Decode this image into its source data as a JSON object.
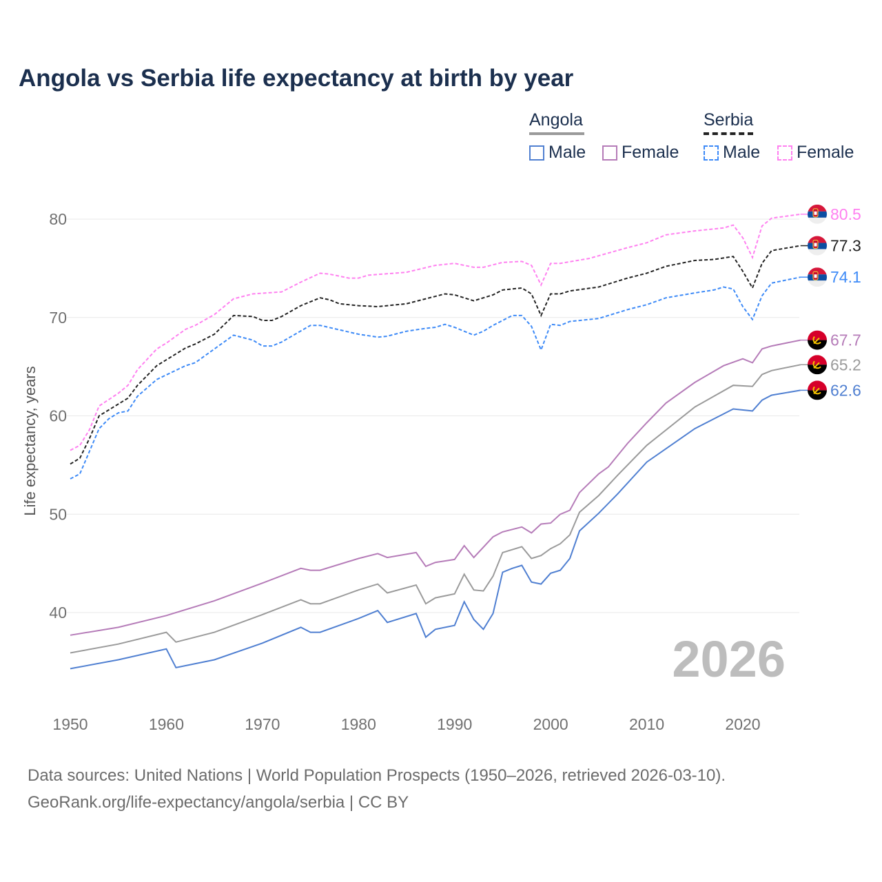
{
  "title": "Angola vs Serbia life expectancy at birth by year",
  "legend": {
    "angola": {
      "label": "Angola",
      "male": "Male",
      "female": "Female"
    },
    "serbia": {
      "label": "Serbia",
      "male": "Male",
      "female": "Female"
    }
  },
  "year_watermark": "2026",
  "footer": {
    "line1": "Data sources: United Nations | World Population Prospects (1950–2026, retrieved 2026-03-10).",
    "line2": "GeoRank.org/life-expectancy/angola/serbia | CC BY"
  },
  "chart_data": {
    "type": "line",
    "title": "Angola vs Serbia life expectancy at birth by year",
    "xlabel": "",
    "ylabel": "Life expectancy, years",
    "xlim": [
      1950,
      2026
    ],
    "ylim": [
      32,
      86
    ],
    "xticks": [
      "1950",
      "1960",
      "1970",
      "1980",
      "1990",
      "2000",
      "2010",
      "2020"
    ],
    "yticks": [
      "40",
      "50",
      "60",
      "70",
      "80"
    ],
    "grid": true,
    "legend_position": "top-right",
    "series": [
      {
        "name": "Serbia Female",
        "country": "Serbia",
        "color": "#ff80f0",
        "dashed": true,
        "end_label": "80.5",
        "points": [
          [
            1950,
            56.5
          ],
          [
            1951,
            57.0
          ],
          [
            1952,
            58.6
          ],
          [
            1953,
            61.0
          ],
          [
            1955,
            62.3
          ],
          [
            1956,
            63.1
          ],
          [
            1957,
            64.7
          ],
          [
            1959,
            66.8
          ],
          [
            1960,
            67.4
          ],
          [
            1962,
            68.8
          ],
          [
            1963,
            69.2
          ],
          [
            1965,
            70.3
          ],
          [
            1967,
            71.9
          ],
          [
            1969,
            72.4
          ],
          [
            1972,
            72.6
          ],
          [
            1974,
            73.6
          ],
          [
            1976,
            74.5
          ],
          [
            1977,
            74.4
          ],
          [
            1979,
            74.0
          ],
          [
            1980,
            74.0
          ],
          [
            1981,
            74.3
          ],
          [
            1985,
            74.6
          ],
          [
            1988,
            75.3
          ],
          [
            1990,
            75.5
          ],
          [
            1992,
            75.1
          ],
          [
            1993,
            75.1
          ],
          [
            1995,
            75.6
          ],
          [
            1997,
            75.7
          ],
          [
            1998,
            75.3
          ],
          [
            1999,
            73.3
          ],
          [
            2000,
            75.5
          ],
          [
            2001,
            75.5
          ],
          [
            2004,
            76.0
          ],
          [
            2008,
            77.1
          ],
          [
            2010,
            77.6
          ],
          [
            2012,
            78.4
          ],
          [
            2015,
            78.8
          ],
          [
            2018,
            79.1
          ],
          [
            2019,
            79.4
          ],
          [
            2020,
            78.1
          ],
          [
            2021,
            76.1
          ],
          [
            2022,
            79.3
          ],
          [
            2023,
            80.1
          ],
          [
            2026,
            80.5
          ]
        ]
      },
      {
        "name": "Serbia",
        "country": "Serbia",
        "color": "#222222",
        "dashed": true,
        "end_label": "77.3",
        "points": [
          [
            1950,
            55.1
          ],
          [
            1951,
            55.7
          ],
          [
            1952,
            57.7
          ],
          [
            1953,
            60.0
          ],
          [
            1955,
            61.2
          ],
          [
            1956,
            61.8
          ],
          [
            1957,
            63.1
          ],
          [
            1959,
            65.1
          ],
          [
            1962,
            66.9
          ],
          [
            1963,
            67.3
          ],
          [
            1965,
            68.3
          ],
          [
            1967,
            70.2
          ],
          [
            1969,
            70.1
          ],
          [
            1970,
            69.7
          ],
          [
            1971,
            69.7
          ],
          [
            1972,
            70.1
          ],
          [
            1974,
            71.2
          ],
          [
            1976,
            72.0
          ],
          [
            1977,
            71.8
          ],
          [
            1978,
            71.4
          ],
          [
            1980,
            71.2
          ],
          [
            1982,
            71.1
          ],
          [
            1985,
            71.4
          ],
          [
            1987,
            71.9
          ],
          [
            1989,
            72.4
          ],
          [
            1990,
            72.3
          ],
          [
            1992,
            71.7
          ],
          [
            1994,
            72.3
          ],
          [
            1995,
            72.8
          ],
          [
            1997,
            73.0
          ],
          [
            1998,
            72.4
          ],
          [
            1999,
            70.2
          ],
          [
            2000,
            72.4
          ],
          [
            2001,
            72.4
          ],
          [
            2002,
            72.7
          ],
          [
            2005,
            73.1
          ],
          [
            2008,
            74.0
          ],
          [
            2010,
            74.5
          ],
          [
            2012,
            75.2
          ],
          [
            2015,
            75.8
          ],
          [
            2017,
            75.9
          ],
          [
            2019,
            76.2
          ],
          [
            2020,
            74.7
          ],
          [
            2021,
            73.0
          ],
          [
            2022,
            75.5
          ],
          [
            2023,
            76.8
          ],
          [
            2026,
            77.3
          ]
        ]
      },
      {
        "name": "Serbia Male",
        "country": "Serbia",
        "color": "#3d8af7",
        "dashed": true,
        "end_label": "74.1",
        "points": [
          [
            1950,
            53.6
          ],
          [
            1951,
            54.1
          ],
          [
            1952,
            56.4
          ],
          [
            1953,
            58.7
          ],
          [
            1954,
            59.7
          ],
          [
            1955,
            60.3
          ],
          [
            1956,
            60.5
          ],
          [
            1957,
            62.0
          ],
          [
            1959,
            63.7
          ],
          [
            1962,
            65.1
          ],
          [
            1963,
            65.4
          ],
          [
            1967,
            68.2
          ],
          [
            1969,
            67.7
          ],
          [
            1970,
            67.1
          ],
          [
            1971,
            67.1
          ],
          [
            1972,
            67.5
          ],
          [
            1975,
            69.2
          ],
          [
            1976,
            69.2
          ],
          [
            1980,
            68.3
          ],
          [
            1982,
            68.0
          ],
          [
            1983,
            68.1
          ],
          [
            1985,
            68.6
          ],
          [
            1987,
            68.9
          ],
          [
            1988,
            69.0
          ],
          [
            1989,
            69.3
          ],
          [
            1990,
            69.0
          ],
          [
            1992,
            68.2
          ],
          [
            1993,
            68.6
          ],
          [
            1994,
            69.2
          ],
          [
            1996,
            70.2
          ],
          [
            1997,
            70.2
          ],
          [
            1998,
            69.1
          ],
          [
            1999,
            66.7
          ],
          [
            2000,
            69.3
          ],
          [
            2001,
            69.2
          ],
          [
            2002,
            69.6
          ],
          [
            2005,
            69.9
          ],
          [
            2008,
            70.8
          ],
          [
            2010,
            71.3
          ],
          [
            2012,
            72.0
          ],
          [
            2015,
            72.5
          ],
          [
            2017,
            72.8
          ],
          [
            2018,
            73.1
          ],
          [
            2019,
            72.9
          ],
          [
            2020,
            71.1
          ],
          [
            2021,
            69.8
          ],
          [
            2022,
            72.2
          ],
          [
            2023,
            73.5
          ],
          [
            2026,
            74.1
          ]
        ]
      },
      {
        "name": "Angola Female",
        "country": "Angola",
        "color": "#b57bb8",
        "dashed": false,
        "end_label": "67.7",
        "points": [
          [
            1950,
            37.7
          ],
          [
            1955,
            38.5
          ],
          [
            1960,
            39.7
          ],
          [
            1965,
            41.2
          ],
          [
            1970,
            43.0
          ],
          [
            1974,
            44.5
          ],
          [
            1975,
            44.3
          ],
          [
            1976,
            44.3
          ],
          [
            1980,
            45.5
          ],
          [
            1982,
            46.0
          ],
          [
            1983,
            45.6
          ],
          [
            1986,
            46.1
          ],
          [
            1987,
            44.7
          ],
          [
            1988,
            45.1
          ],
          [
            1990,
            45.4
          ],
          [
            1991,
            46.8
          ],
          [
            1992,
            45.6
          ],
          [
            1994,
            47.7
          ],
          [
            1995,
            48.2
          ],
          [
            1997,
            48.7
          ],
          [
            1998,
            48.1
          ],
          [
            1999,
            49.0
          ],
          [
            2000,
            49.1
          ],
          [
            2001,
            50.0
          ],
          [
            2002,
            50.4
          ],
          [
            2003,
            52.2
          ],
          [
            2005,
            54.1
          ],
          [
            2006,
            54.8
          ],
          [
            2008,
            57.2
          ],
          [
            2010,
            59.3
          ],
          [
            2012,
            61.3
          ],
          [
            2015,
            63.4
          ],
          [
            2018,
            65.1
          ],
          [
            2020,
            65.8
          ],
          [
            2021,
            65.4
          ],
          [
            2022,
            66.8
          ],
          [
            2023,
            67.1
          ],
          [
            2026,
            67.7
          ]
        ]
      },
      {
        "name": "Angola",
        "country": "Angola",
        "color": "#9a9a9a",
        "dashed": false,
        "end_label": "65.2",
        "points": [
          [
            1950,
            35.9
          ],
          [
            1955,
            36.8
          ],
          [
            1960,
            38.0
          ],
          [
            1961,
            37.0
          ],
          [
            1965,
            38.0
          ],
          [
            1970,
            39.8
          ],
          [
            1974,
            41.3
          ],
          [
            1975,
            40.9
          ],
          [
            1976,
            40.9
          ],
          [
            1980,
            42.3
          ],
          [
            1982,
            42.9
          ],
          [
            1983,
            42.0
          ],
          [
            1986,
            42.8
          ],
          [
            1987,
            40.9
          ],
          [
            1988,
            41.5
          ],
          [
            1990,
            41.9
          ],
          [
            1991,
            43.9
          ],
          [
            1992,
            42.3
          ],
          [
            1993,
            42.2
          ],
          [
            1994,
            43.7
          ],
          [
            1995,
            46.1
          ],
          [
            1997,
            46.7
          ],
          [
            1998,
            45.5
          ],
          [
            1999,
            45.8
          ],
          [
            2000,
            46.5
          ],
          [
            2001,
            47.0
          ],
          [
            2002,
            47.9
          ],
          [
            2003,
            50.2
          ],
          [
            2005,
            51.9
          ],
          [
            2007,
            54.0
          ],
          [
            2010,
            57.0
          ],
          [
            2015,
            60.9
          ],
          [
            2019,
            63.1
          ],
          [
            2021,
            63.0
          ],
          [
            2022,
            64.2
          ],
          [
            2023,
            64.6
          ],
          [
            2026,
            65.2
          ]
        ]
      },
      {
        "name": "Angola Male",
        "country": "Angola",
        "color": "#4f7fd1",
        "dashed": false,
        "end_label": "62.6",
        "points": [
          [
            1950,
            34.3
          ],
          [
            1955,
            35.2
          ],
          [
            1960,
            36.3
          ],
          [
            1961,
            34.4
          ],
          [
            1965,
            35.2
          ],
          [
            1970,
            36.9
          ],
          [
            1974,
            38.5
          ],
          [
            1975,
            38.0
          ],
          [
            1976,
            38.0
          ],
          [
            1980,
            39.4
          ],
          [
            1982,
            40.2
          ],
          [
            1983,
            39.0
          ],
          [
            1986,
            39.9
          ],
          [
            1987,
            37.5
          ],
          [
            1988,
            38.3
          ],
          [
            1990,
            38.7
          ],
          [
            1991,
            41.1
          ],
          [
            1992,
            39.3
          ],
          [
            1993,
            38.3
          ],
          [
            1994,
            39.9
          ],
          [
            1995,
            44.1
          ],
          [
            1996,
            44.5
          ],
          [
            1997,
            44.8
          ],
          [
            1998,
            43.1
          ],
          [
            1999,
            42.9
          ],
          [
            2000,
            44.0
          ],
          [
            2001,
            44.3
          ],
          [
            2002,
            45.5
          ],
          [
            2003,
            48.3
          ],
          [
            2005,
            50.1
          ],
          [
            2007,
            52.1
          ],
          [
            2010,
            55.3
          ],
          [
            2015,
            58.7
          ],
          [
            2019,
            60.7
          ],
          [
            2021,
            60.5
          ],
          [
            2022,
            61.6
          ],
          [
            2023,
            62.1
          ],
          [
            2026,
            62.6
          ]
        ]
      }
    ]
  }
}
